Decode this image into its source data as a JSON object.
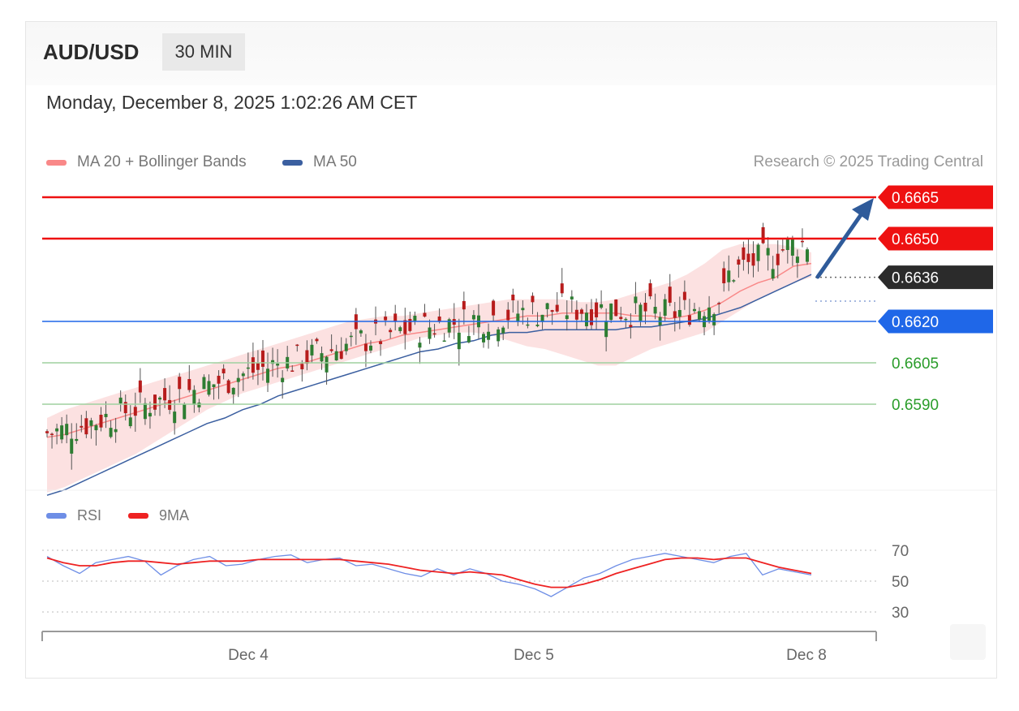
{
  "header": {
    "pair": "AUD/USD",
    "timeframe": "30 MIN"
  },
  "date": "Monday, December 8, 2025 1:02:26 AM CET",
  "legend": {
    "ma20": {
      "label": "MA 20 + Bollinger Bands",
      "color": "#f98888"
    },
    "ma50": {
      "label": "MA 50",
      "color": "#3b5fa0"
    }
  },
  "credit": "Research © 2025 Trading Central",
  "rsi_legend": {
    "rsi": {
      "label": "RSI",
      "color": "#6e8ee6"
    },
    "ma9": {
      "label": "9MA",
      "color": "#ee2222"
    }
  },
  "colors": {
    "resistance": "#ee1111",
    "support": "#1f67e8",
    "support_minor": "#2a9d2a",
    "pivot": "#2b2b2b",
    "arrow": "#2f5b9a",
    "bull": "#2e7d32",
    "bear": "#b71c1c"
  },
  "chart_data": [
    {
      "type": "candlestick",
      "title": "AUD/USD",
      "x_ticks": [
        "Dec 4",
        "Dec 5",
        "Dec 8"
      ],
      "ylim": [
        0.6553,
        0.6673
      ],
      "levels": [
        {
          "label": "0.6665",
          "value": 0.6665,
          "kind": "resistance"
        },
        {
          "label": "0.6650",
          "value": 0.665,
          "kind": "resistance"
        },
        {
          "label": "0.6636",
          "value": 0.6636,
          "kind": "pivot"
        },
        {
          "label": "0.6620",
          "value": 0.662,
          "kind": "support"
        },
        {
          "label": "0.6605",
          "value": 0.6605,
          "kind": "support_minor"
        },
        {
          "label": "0.6590",
          "value": 0.659,
          "kind": "support_minor"
        }
      ],
      "series": [
        {
          "name": "MA 20",
          "values": [
            0.6578,
            0.6579,
            0.6581,
            0.6583,
            0.6585,
            0.6587,
            0.6589,
            0.6591,
            0.6593,
            0.6595,
            0.6597,
            0.6599,
            0.6601,
            0.6603,
            0.6604,
            0.6606,
            0.6608,
            0.661,
            0.6612,
            0.6613,
            0.6615,
            0.6616,
            0.6617,
            0.6618,
            0.6619,
            0.662,
            0.6621,
            0.6622,
            0.6622,
            0.6623,
            0.6623,
            0.6623,
            0.6623,
            0.6622,
            0.6622,
            0.6621,
            0.6622,
            0.6624,
            0.6627,
            0.6631,
            0.6634,
            0.6636,
            0.664,
            0.6641
          ]
        },
        {
          "name": "MA 50",
          "values": [
            0.6557,
            0.6559,
            0.6562,
            0.6565,
            0.6568,
            0.6571,
            0.6574,
            0.6577,
            0.658,
            0.6583,
            0.6585,
            0.6588,
            0.659,
            0.6593,
            0.6595,
            0.6597,
            0.6599,
            0.6601,
            0.6603,
            0.6605,
            0.6607,
            0.6609,
            0.661,
            0.6612,
            0.6613,
            0.6615,
            0.6616,
            0.6616,
            0.6617,
            0.6617,
            0.6617,
            0.6617,
            0.6617,
            0.6618,
            0.6618,
            0.6619,
            0.662,
            0.6621,
            0.6623,
            0.6625,
            0.6628,
            0.6631,
            0.6634,
            0.6637
          ]
        },
        {
          "name": "BB upper",
          "values": [
            0.6585,
            0.6588,
            0.659,
            0.6592,
            0.6594,
            0.6596,
            0.6598,
            0.66,
            0.6602,
            0.6604,
            0.6606,
            0.6608,
            0.661,
            0.6612,
            0.6614,
            0.6616,
            0.6618,
            0.662,
            0.6621,
            0.6622,
            0.6622,
            0.6623,
            0.6624,
            0.6625,
            0.6626,
            0.6627,
            0.6628,
            0.6628,
            0.6628,
            0.6628,
            0.6627,
            0.6627,
            0.6628,
            0.663,
            0.6632,
            0.6634,
            0.6637,
            0.6641,
            0.6646,
            0.6648,
            0.6648,
            0.6648,
            0.6647,
            0.6645
          ]
        },
        {
          "name": "BB lower",
          "values": [
            0.6558,
            0.656,
            0.6563,
            0.6566,
            0.6569,
            0.6572,
            0.6576,
            0.658,
            0.6584,
            0.6588,
            0.6591,
            0.6594,
            0.6596,
            0.6598,
            0.66,
            0.6602,
            0.6604,
            0.6606,
            0.6608,
            0.661,
            0.6612,
            0.6614,
            0.6615,
            0.6616,
            0.6616,
            0.6615,
            0.6613,
            0.6611,
            0.661,
            0.6608,
            0.6606,
            0.6604,
            0.6604,
            0.6607,
            0.661,
            0.6612,
            0.6614,
            0.6616,
            0.662,
            0.6624,
            0.6628,
            0.6631,
            0.6634,
            0.6636
          ]
        }
      ]
    },
    {
      "type": "line",
      "title": "RSI",
      "ylim": [
        25,
        75
      ],
      "y_ticks": [
        70,
        50,
        30
      ],
      "series": [
        {
          "name": "RSI",
          "values": [
            66,
            60,
            55,
            62,
            64,
            66,
            63,
            54,
            60,
            64,
            66,
            60,
            61,
            64,
            66,
            67,
            62,
            64,
            65,
            60,
            61,
            58,
            55,
            53,
            58,
            54,
            58,
            55,
            50,
            48,
            45,
            40,
            46,
            52,
            55,
            60,
            64,
            66,
            68,
            66,
            64,
            62,
            66,
            68,
            54,
            58,
            56,
            54
          ]
        },
        {
          "name": "9MA",
          "values": [
            65,
            62,
            60,
            60,
            62,
            63,
            63,
            62,
            61,
            62,
            63,
            63,
            63,
            64,
            64,
            64,
            64,
            64,
            64,
            63,
            62,
            61,
            59,
            57,
            56,
            55,
            56,
            55,
            54,
            51,
            48,
            46,
            46,
            48,
            51,
            55,
            58,
            61,
            64,
            65,
            65,
            64,
            65,
            65,
            62,
            59,
            57,
            55
          ]
        }
      ]
    }
  ]
}
